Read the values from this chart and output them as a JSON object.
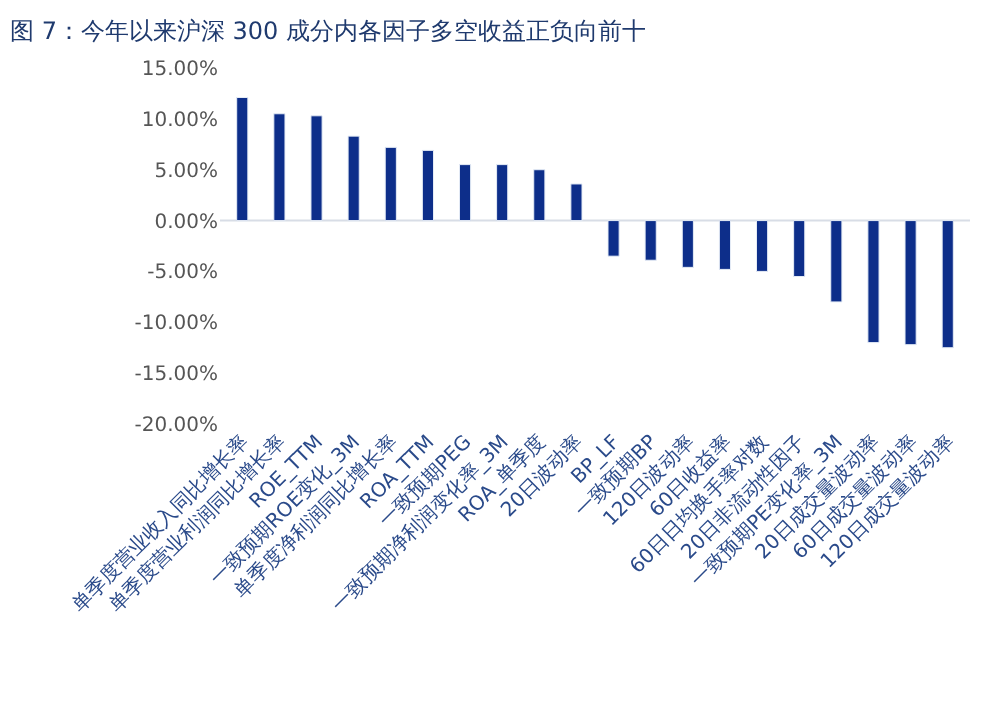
{
  "chart_data": {
    "type": "bar",
    "title": "图 7：今年以来沪深 300 成分内各因子多空收益正负向前十",
    "categories": [
      "单季度营业收入同比增长率",
      "单季度营业利润同比增长率",
      "ROE_TTM",
      "一致预期ROE变化_3M",
      "单季度净利润同比增长率",
      "ROA_TTM",
      "一致预期PEG",
      "一致预期净利润变化率_3M",
      "ROA_单季度",
      "20日波动率",
      "BP_LF",
      "一致预期BP",
      "120日波动率",
      "60日收益率",
      "60日日均换手率对数",
      "20日非流动性因子",
      "一致预期PE变化率_3M",
      "20日成交量波动率",
      "60日成交量波动率",
      "120日成交量波动率"
    ],
    "values": [
      12.1,
      10.5,
      10.3,
      8.3,
      7.2,
      6.9,
      5.5,
      5.5,
      5.0,
      3.6,
      -3.5,
      -3.9,
      -4.6,
      -4.8,
      -5.0,
      -5.5,
      -8.0,
      -12.0,
      -12.2,
      -12.5
    ],
    "color": "#0d2e8a",
    "ylim": [
      -20,
      15
    ],
    "yticks": [
      {
        "value": 15,
        "label": "15.00%"
      },
      {
        "value": 10,
        "label": "10.00%"
      },
      {
        "value": 5,
        "label": "5.00%"
      },
      {
        "value": 0,
        "label": "0.00%"
      },
      {
        "value": -5,
        "label": "-5.00%"
      },
      {
        "value": -10,
        "label": "-10.00%"
      },
      {
        "value": -15,
        "label": "-15.00%"
      },
      {
        "value": -20,
        "label": "-20.00%"
      }
    ],
    "ref_lines": [
      {
        "axis": "y",
        "value": 0,
        "color": "#d8dde6"
      }
    ],
    "grid": false
  }
}
